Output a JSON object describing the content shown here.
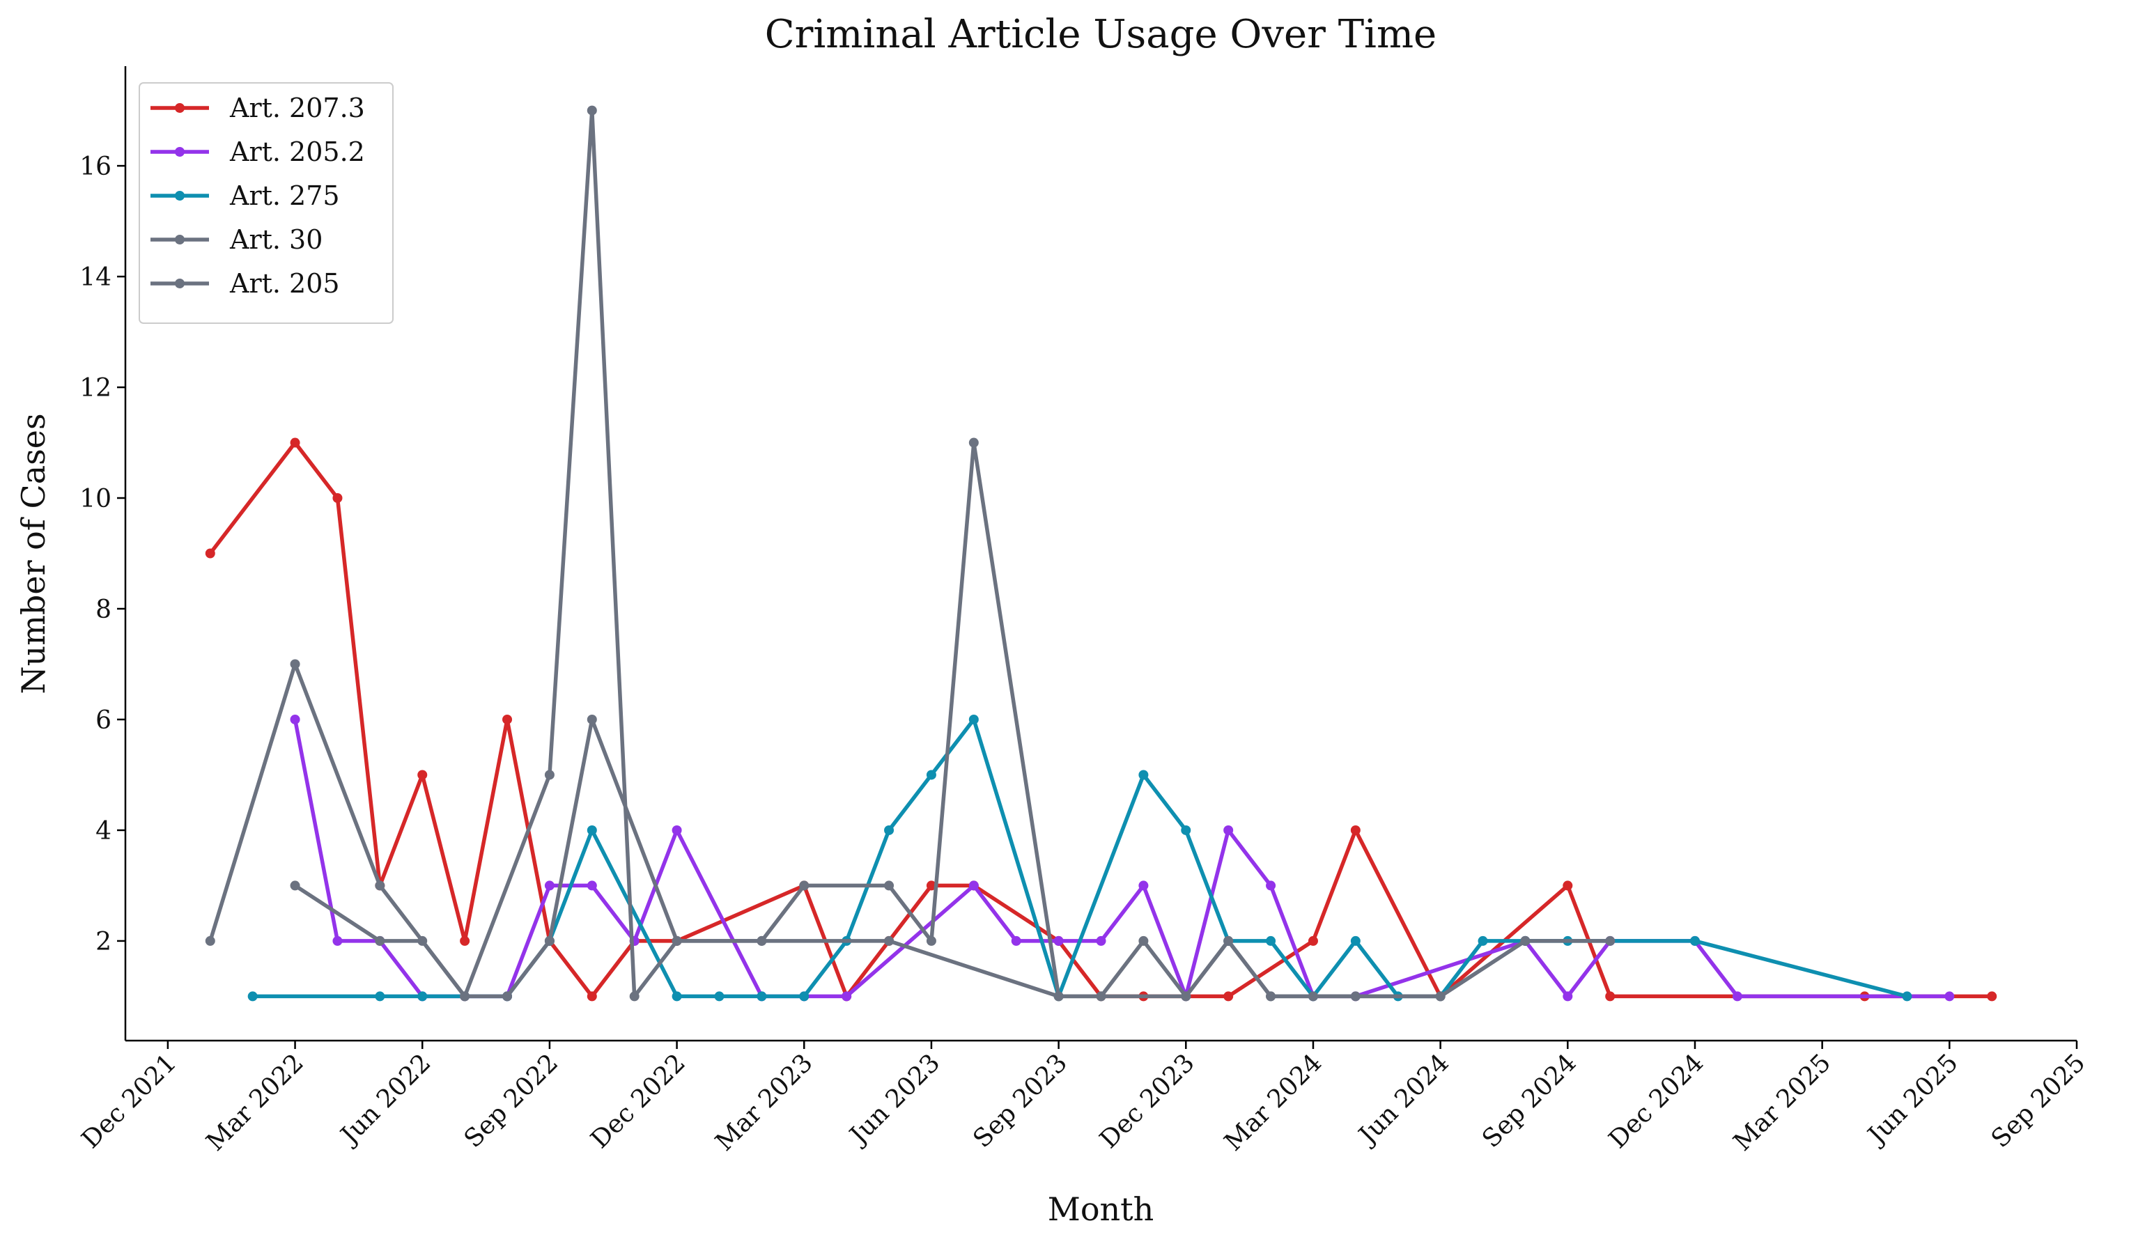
{
  "chart_data": {
    "type": "line",
    "title": "Criminal Article Usage Over Time",
    "x_label": "Month",
    "y_label": "Number of Cases",
    "xlim": [
      "2021-11",
      "2025-09"
    ],
    "ylim": [
      0.2,
      17.8
    ],
    "xticks": [
      {
        "value": "2021-12",
        "label": "Dec 2021"
      },
      {
        "value": "2022-03",
        "label": "Mar 2022"
      },
      {
        "value": "2022-06",
        "label": "Jun 2022"
      },
      {
        "value": "2022-09",
        "label": "Sep 2022"
      },
      {
        "value": "2022-12",
        "label": "Dec 2022"
      },
      {
        "value": "2023-03",
        "label": "Mar 2023"
      },
      {
        "value": "2023-06",
        "label": "Jun 2023"
      },
      {
        "value": "2023-09",
        "label": "Sep 2023"
      },
      {
        "value": "2023-12",
        "label": "Dec 2023"
      },
      {
        "value": "2024-03",
        "label": "Mar 2024"
      },
      {
        "value": "2024-06",
        "label": "Jun 2024"
      },
      {
        "value": "2024-09",
        "label": "Sep 2024"
      },
      {
        "value": "2024-12",
        "label": "Dec 2024"
      },
      {
        "value": "2025-03",
        "label": "Mar 2025"
      },
      {
        "value": "2025-06",
        "label": "Jun 2025"
      },
      {
        "value": "2025-09",
        "label": "Sep 2025"
      }
    ],
    "yticks": [
      2,
      4,
      6,
      8,
      10,
      12,
      14,
      16
    ],
    "legend": "upper left",
    "series": [
      {
        "name": "Art. 207.3",
        "color": "#d62728",
        "x": [
          "2022-01",
          "2022-03",
          "2022-04",
          "2022-05",
          "2022-06",
          "2022-07",
          "2022-08",
          "2022-09",
          "2022-10",
          "2022-11",
          "2022-12",
          "2023-03",
          "2023-04",
          "2023-05",
          "2023-06",
          "2023-07",
          "2023-09",
          "2023-10",
          "2023-11",
          "2024-01",
          "2024-03",
          "2024-04",
          "2024-06",
          "2024-09",
          "2024-10",
          "2025-04",
          "2025-07"
        ],
        "values": [
          9,
          11,
          10,
          3,
          5,
          2,
          6,
          2,
          1,
          2,
          2,
          3,
          1,
          2,
          3,
          3,
          2,
          1,
          1,
          1,
          2,
          4,
          1,
          3,
          1,
          1,
          1
        ]
      },
      {
        "name": "Art. 205.2",
        "color": "#9333ea",
        "x": [
          "2022-03",
          "2022-04",
          "2022-05",
          "2022-06",
          "2022-07",
          "2022-08",
          "2022-09",
          "2022-10",
          "2022-11",
          "2022-12",
          "2023-02",
          "2023-03",
          "2023-04",
          "2023-07",
          "2023-08",
          "2023-09",
          "2023-10",
          "2023-11",
          "2023-12",
          "2024-01",
          "2024-02",
          "2024-03",
          "2024-04",
          "2024-08",
          "2024-09",
          "2024-10",
          "2024-12",
          "2025-01",
          "2025-06"
        ],
        "values": [
          6,
          2,
          2,
          1,
          1,
          1,
          3,
          3,
          2,
          4,
          1,
          1,
          1,
          3,
          2,
          2,
          2,
          3,
          1,
          4,
          3,
          1,
          1,
          2,
          1,
          2,
          2,
          1,
          1
        ]
      },
      {
        "name": "Art. 275",
        "color": "#0e8fb0",
        "x": [
          "2022-02",
          "2022-05",
          "2022-06",
          "2022-08",
          "2022-09",
          "2022-10",
          "2022-12",
          "2023-01",
          "2023-02",
          "2023-03",
          "2023-04",
          "2023-05",
          "2023-06",
          "2023-07",
          "2023-09",
          "2023-11",
          "2023-12",
          "2024-01",
          "2024-02",
          "2024-03",
          "2024-04",
          "2024-05",
          "2024-06",
          "2024-07",
          "2024-08",
          "2024-09",
          "2024-12",
          "2025-05"
        ],
        "values": [
          1,
          1,
          1,
          1,
          2,
          4,
          1,
          1,
          1,
          1,
          2,
          4,
          5,
          6,
          1,
          5,
          4,
          2,
          2,
          1,
          2,
          1,
          1,
          2,
          2,
          2,
          2,
          1
        ]
      },
      {
        "name": "Art. 30",
        "color": "#6b7280",
        "x": [
          "2022-01",
          "2022-03",
          "2022-05",
          "2022-07",
          "2022-09",
          "2022-10",
          "2022-11",
          "2022-12",
          "2023-02",
          "2023-03",
          "2023-05",
          "2023-06",
          "2023-07",
          "2023-09",
          "2023-10",
          "2023-11",
          "2023-12",
          "2024-01",
          "2024-02",
          "2024-03",
          "2024-06",
          "2024-08",
          "2024-10"
        ],
        "values": [
          2,
          7,
          3,
          1,
          5,
          17,
          1,
          2,
          2,
          3,
          3,
          2,
          11,
          1,
          1,
          2,
          1,
          2,
          1,
          1,
          1,
          2,
          2
        ]
      },
      {
        "name": "Art. 205",
        "color": "#6b7280",
        "x": [
          "2022-03",
          "2022-05",
          "2022-06",
          "2022-07",
          "2022-08",
          "2022-09",
          "2022-10",
          "2022-12",
          "2023-02",
          "2023-05",
          "2023-09",
          "2023-10",
          "2023-12",
          "2024-01",
          "2024-02",
          "2024-04",
          "2024-06",
          "2024-08"
        ],
        "values": [
          3,
          2,
          2,
          1,
          1,
          2,
          6,
          2,
          2,
          2,
          1,
          1,
          1,
          2,
          1,
          1,
          1,
          2
        ]
      }
    ]
  }
}
